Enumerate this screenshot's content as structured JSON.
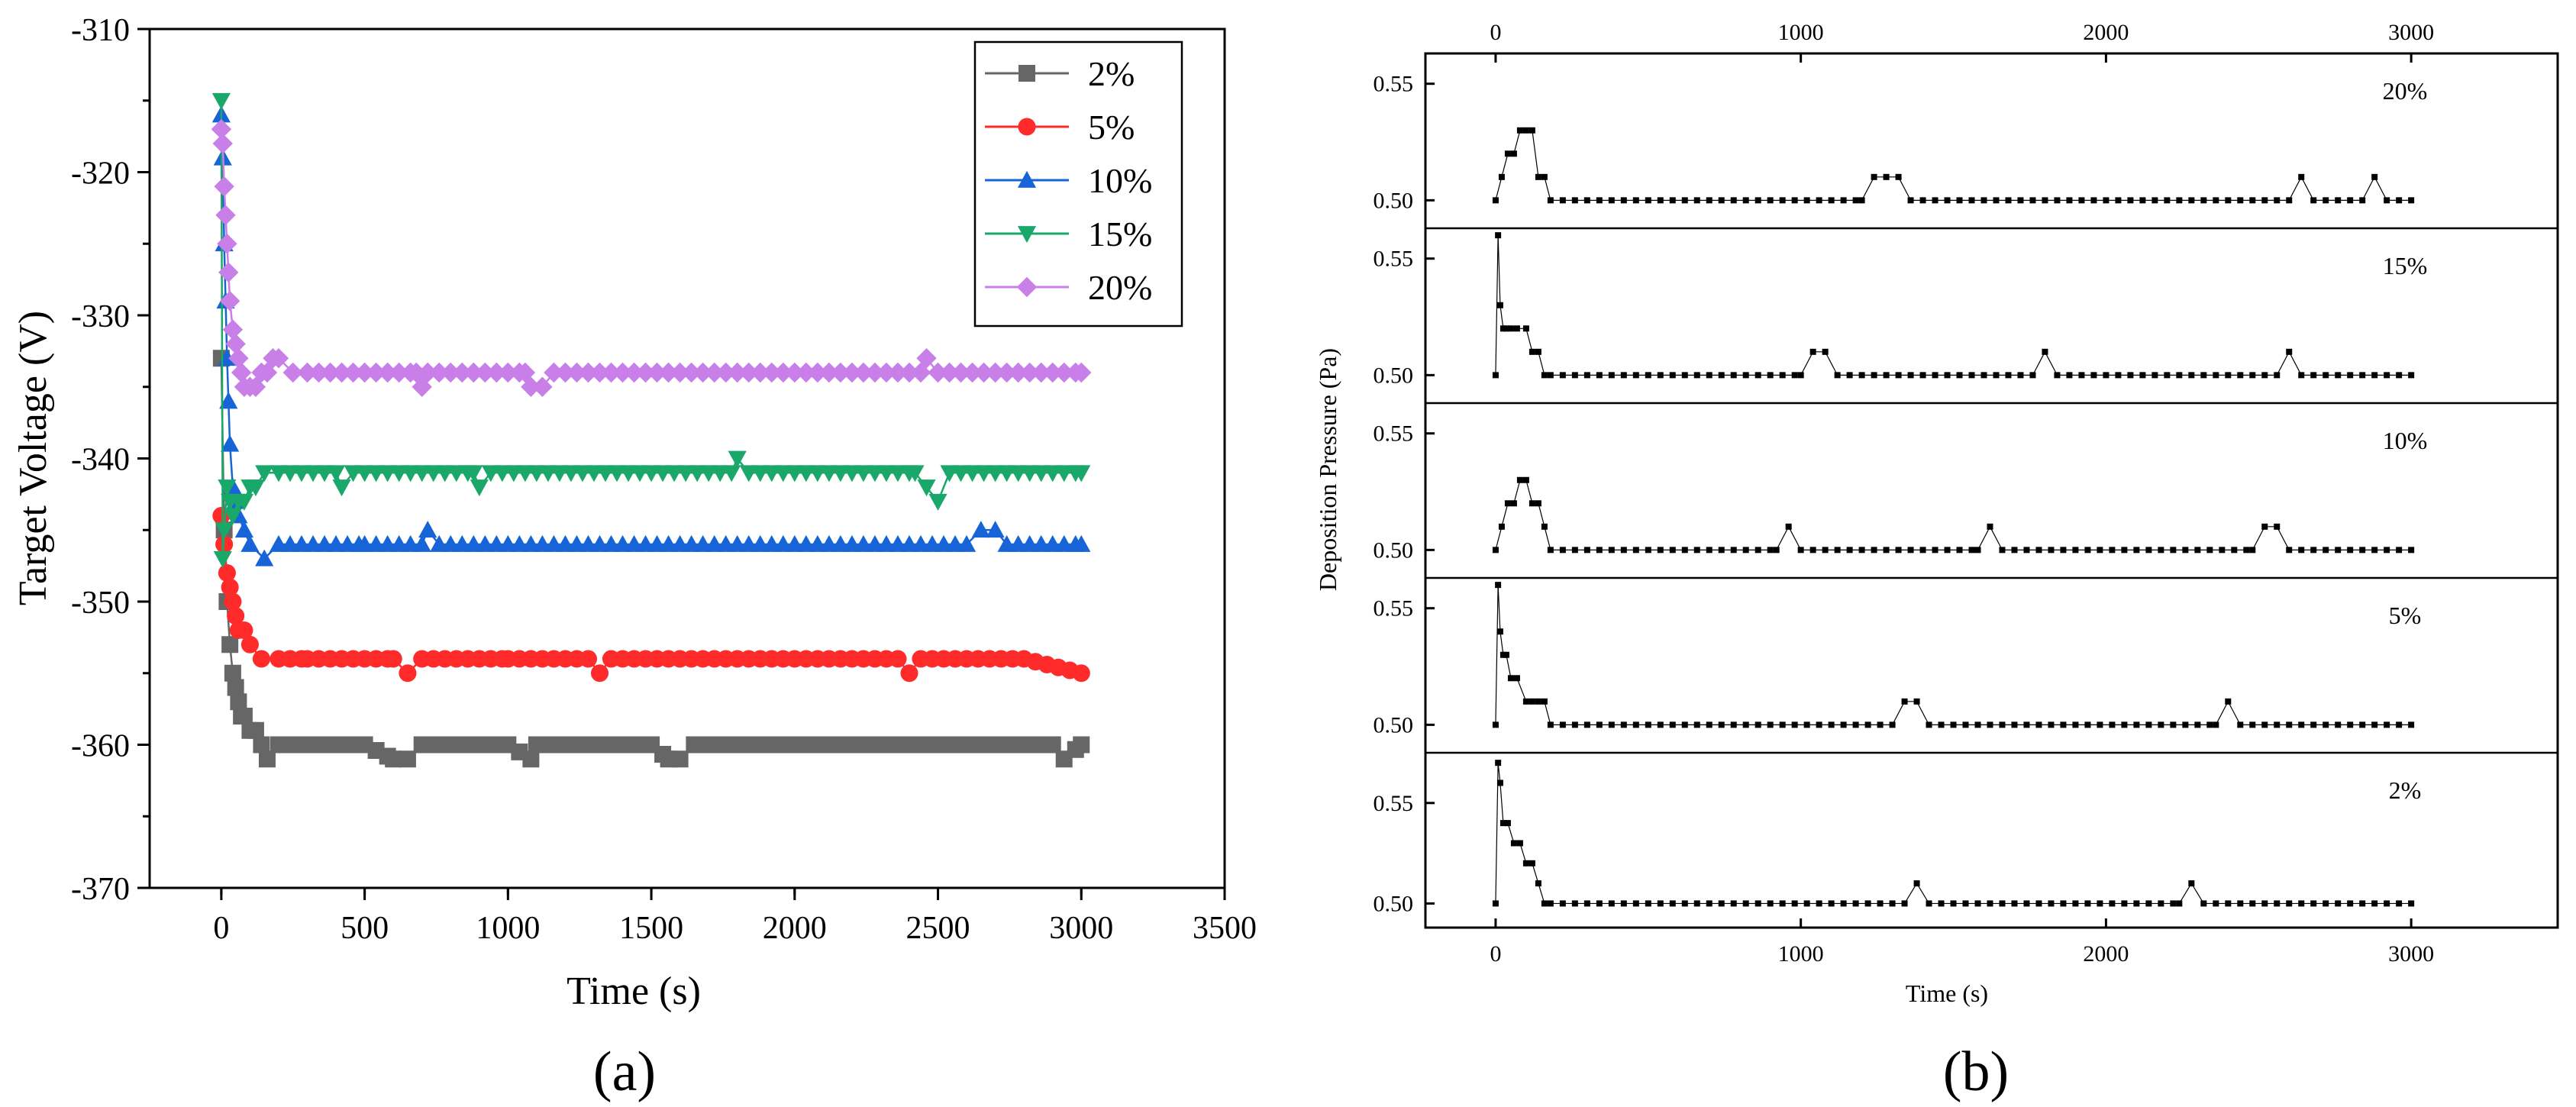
{
  "chart_data": [
    {
      "type": "line",
      "panel_label": "(a)",
      "xlabel": "Time (s)",
      "ylabel": "Target Voltage (V)",
      "xlim": [
        -250,
        3500
      ],
      "ylim": [
        -370,
        -310
      ],
      "xticks": [
        0,
        500,
        1000,
        1500,
        2000,
        2500,
        3000,
        3500
      ],
      "yticks": [
        -370,
        -360,
        -350,
        -340,
        -330,
        -320,
        -310
      ],
      "ytick_labels": [
        "-370",
        "-360",
        "-350",
        "-340",
        "-330",
        "-320",
        "-310"
      ],
      "legend_position": "top-right",
      "series": [
        {
          "name": "2%",
          "color": "#666666",
          "marker": "square",
          "x": [
            0,
            10,
            20,
            30,
            40,
            50,
            60,
            70,
            80,
            100,
            120,
            140,
            160,
            200,
            300,
            500,
            600,
            650,
            700,
            800,
            1000,
            1080,
            1100,
            1500,
            1560,
            1600,
            1650,
            2000,
            2500,
            2900,
            2940,
            3000
          ],
          "y": [
            -333,
            -345,
            -350,
            -353,
            -355,
            -356,
            -357,
            -358,
            -358,
            -359,
            -359,
            -360,
            -361,
            -360,
            -360,
            -360,
            -361,
            -361,
            -360,
            -360,
            -360,
            -361,
            -360,
            -360,
            -361,
            -361,
            -360,
            -360,
            -360,
            -360,
            -361,
            -360
          ]
        },
        {
          "name": "5%",
          "color": "#ff2a2a",
          "marker": "circle",
          "x": [
            0,
            10,
            20,
            30,
            40,
            50,
            60,
            80,
            100,
            140,
            200,
            300,
            600,
            650,
            700,
            1000,
            1280,
            1320,
            1360,
            2000,
            2360,
            2400,
            2440,
            2800,
            3000
          ],
          "y": [
            -344,
            -346,
            -348,
            -349,
            -350,
            -351,
            -352,
            -352,
            -353,
            -354,
            -354,
            -354,
            -354,
            -355,
            -354,
            -354,
            -354,
            -355,
            -354,
            -354,
            -354,
            -355,
            -354,
            -354,
            -355
          ]
        },
        {
          "name": "10%",
          "color": "#1764d8",
          "marker": "triangle-up",
          "x": [
            0,
            5,
            10,
            15,
            20,
            25,
            30,
            40,
            50,
            60,
            80,
            100,
            150,
            200,
            500,
            700,
            720,
            760,
            1000,
            2000,
            2600,
            2650,
            2700,
            2740,
            3000
          ],
          "y": [
            -316,
            -319,
            -325,
            -329,
            -333,
            -336,
            -339,
            -342,
            -343,
            -344,
            -345,
            -346,
            -347,
            -346,
            -346,
            -346,
            -345,
            -346,
            -346,
            -346,
            -346,
            -345,
            -345,
            -346,
            -346
          ]
        },
        {
          "name": "15%",
          "color": "#1aa86a",
          "marker": "triangle-down",
          "x": [
            0,
            5,
            10,
            20,
            30,
            40,
            60,
            80,
            100,
            120,
            150,
            200,
            400,
            420,
            460,
            880,
            900,
            940,
            1780,
            1800,
            1840,
            2420,
            2460,
            2500,
            2540,
            2580,
            3000
          ],
          "y": [
            -315,
            -347,
            -345,
            -342,
            -343,
            -344,
            -343,
            -343,
            -342,
            -342,
            -341,
            -341,
            -341,
            -342,
            -341,
            -341,
            -342,
            -341,
            -341,
            -340,
            -341,
            -341,
            -342,
            -343,
            -341,
            -341,
            -341
          ]
        },
        {
          "name": "20%",
          "color": "#c97fe8",
          "marker": "diamond",
          "x": [
            0,
            5,
            10,
            15,
            20,
            25,
            30,
            40,
            50,
            60,
            70,
            80,
            100,
            120,
            140,
            160,
            180,
            200,
            250,
            300,
            680,
            700,
            720,
            1060,
            1080,
            1120,
            1160,
            2440,
            2460,
            2500,
            3000
          ],
          "y": [
            -317,
            -318,
            -321,
            -323,
            -325,
            -327,
            -329,
            -331,
            -332,
            -333,
            -334,
            -335,
            -335,
            -335,
            -334,
            -334,
            -333,
            -333,
            -334,
            -334,
            -334,
            -335,
            -334,
            -334,
            -335,
            -335,
            -334,
            -334,
            -333,
            -334,
            -334
          ]
        }
      ]
    },
    {
      "type": "line",
      "panel_label": "(b)",
      "xlabel": "Time (s)",
      "ylabel": "Deposition Pressure (Pa)",
      "xlim": [
        -230,
        3480
      ],
      "xticks": [
        0,
        1000,
        2000,
        3000
      ],
      "yticks": [
        0.5,
        0.55
      ],
      "ytick_labels": [
        "0.50",
        "0.55"
      ],
      "panels": [
        {
          "label": "20%",
          "ylim": [
            0.488,
            0.563
          ],
          "x": [
            0,
            20,
            40,
            60,
            80,
            100,
            120,
            140,
            160,
            180,
            1200,
            1240,
            1280,
            1320,
            1360,
            2600,
            2640,
            2680,
            2840,
            2880,
            2920,
            3000
          ],
          "y": [
            0.5,
            0.51,
            0.52,
            0.52,
            0.53,
            0.53,
            0.53,
            0.51,
            0.51,
            0.5,
            0.5,
            0.51,
            0.51,
            0.51,
            0.5,
            0.5,
            0.51,
            0.5,
            0.5,
            0.51,
            0.5,
            0.5
          ]
        },
        {
          "label": "15%",
          "ylim": [
            0.488,
            0.563
          ],
          "x": [
            0,
            8,
            15,
            25,
            35,
            50,
            70,
            100,
            120,
            140,
            160,
            180,
            1000,
            1040,
            1080,
            1120,
            1760,
            1800,
            1840,
            2560,
            2600,
            2640,
            3000
          ],
          "y": [
            0.5,
            0.56,
            0.53,
            0.52,
            0.52,
            0.52,
            0.52,
            0.52,
            0.51,
            0.51,
            0.5,
            0.5,
            0.5,
            0.51,
            0.51,
            0.5,
            0.5,
            0.51,
            0.5,
            0.5,
            0.51,
            0.5,
            0.5
          ]
        },
        {
          "label": "10%",
          "ylim": [
            0.488,
            0.563
          ],
          "x": [
            0,
            20,
            40,
            60,
            80,
            100,
            120,
            140,
            160,
            180,
            920,
            960,
            1000,
            1580,
            1620,
            1660,
            2480,
            2520,
            2560,
            2600,
            3000
          ],
          "y": [
            0.5,
            0.51,
            0.52,
            0.52,
            0.53,
            0.53,
            0.52,
            0.52,
            0.51,
            0.5,
            0.5,
            0.51,
            0.5,
            0.5,
            0.51,
            0.5,
            0.5,
            0.51,
            0.51,
            0.5,
            0.5
          ]
        },
        {
          "label": "5%",
          "ylim": [
            0.488,
            0.563
          ],
          "x": [
            0,
            8,
            15,
            25,
            35,
            50,
            70,
            100,
            120,
            140,
            160,
            180,
            1300,
            1340,
            1380,
            1420,
            2360,
            2400,
            2440,
            3000
          ],
          "y": [
            0.5,
            0.56,
            0.54,
            0.53,
            0.53,
            0.52,
            0.52,
            0.51,
            0.51,
            0.51,
            0.51,
            0.5,
            0.5,
            0.51,
            0.51,
            0.5,
            0.5,
            0.51,
            0.5,
            0.5
          ]
        },
        {
          "label": "2%",
          "ylim": [
            0.488,
            0.575
          ],
          "x": [
            0,
            8,
            15,
            25,
            40,
            60,
            80,
            100,
            120,
            140,
            160,
            180,
            1340,
            1380,
            1420,
            2240,
            2280,
            2320,
            3000
          ],
          "y": [
            0.5,
            0.57,
            0.56,
            0.54,
            0.54,
            0.53,
            0.53,
            0.52,
            0.52,
            0.51,
            0.5,
            0.5,
            0.5,
            0.51,
            0.5,
            0.5,
            0.51,
            0.5,
            0.5
          ]
        }
      ]
    }
  ]
}
